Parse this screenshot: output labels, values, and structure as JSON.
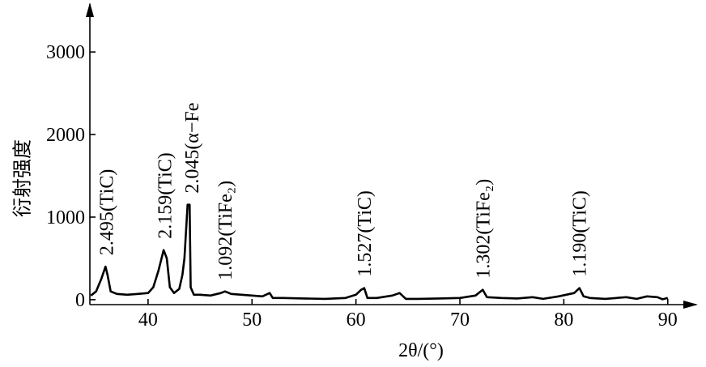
{
  "chart_data": {
    "type": "line",
    "xlabel": "2θ/(°)",
    "ylabel": "衍射强度",
    "xlim": [
      34.4,
      92.9
    ],
    "ylim": [
      -60,
      3600
    ],
    "xticks": [
      40,
      50,
      60,
      70,
      80,
      90
    ],
    "yticks": [
      0,
      1000,
      2000,
      3000
    ],
    "grid": false,
    "series": [
      {
        "color": "#000000",
        "x": [
          34.5,
          35,
          35.5,
          35.9,
          36.1,
          36.4,
          37,
          38,
          39,
          40,
          40.5,
          41,
          41.5,
          41.8,
          42.1,
          42.5,
          43,
          43.3,
          43.5,
          43.8,
          44.0,
          44.1,
          44.4,
          45,
          46,
          47,
          47.4,
          48,
          49,
          50,
          51,
          51.7,
          52,
          53,
          55,
          57,
          59,
          60,
          60.5,
          60.8,
          61.1,
          62,
          63.5,
          64.2,
          64.8,
          66,
          68,
          70,
          71.5,
          72.2,
          72.6,
          74,
          75.5,
          77,
          78,
          79.5,
          81,
          81.5,
          81.9,
          82.5,
          84,
          86,
          87,
          88,
          89,
          89.5,
          90
        ],
        "values": [
          50,
          100,
          250,
          400,
          300,
          100,
          70,
          60,
          70,
          80,
          150,
          350,
          600,
          500,
          150,
          80,
          130,
          300,
          500,
          1150,
          1150,
          150,
          60,
          60,
          50,
          80,
          100,
          70,
          60,
          50,
          40,
          80,
          20,
          20,
          15,
          10,
          20,
          60,
          120,
          140,
          20,
          20,
          50,
          80,
          10,
          10,
          15,
          20,
          50,
          120,
          30,
          20,
          15,
          30,
          10,
          40,
          80,
          140,
          40,
          20,
          10,
          30,
          10,
          40,
          30,
          5,
          20
        ]
      }
    ],
    "annotations": [
      {
        "text": "2.495(TiC)",
        "x": 36.0
      },
      {
        "text": "2.159(TiC)",
        "x": 41.6
      },
      {
        "text": "2.045(α−Fe",
        "x": 44.2
      },
      {
        "text": "1.092(TiFe₂)",
        "x": 47.4
      },
      {
        "text": "1.527(TiC)",
        "x": 60.8
      },
      {
        "text": "1.302(TiFe₂)",
        "x": 72.2
      },
      {
        "text": "1.190(TiC)",
        "x": 81.5
      }
    ]
  }
}
